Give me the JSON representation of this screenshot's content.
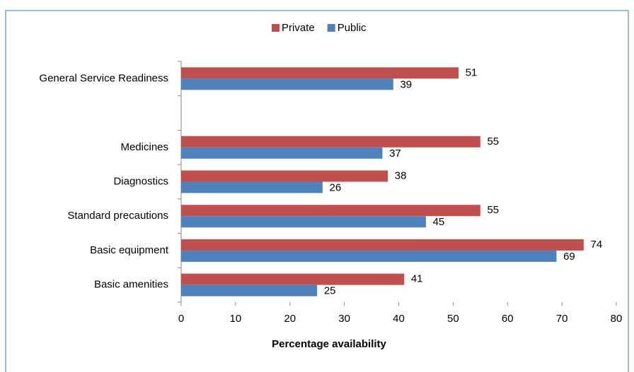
{
  "chart_data": {
    "type": "hbar",
    "categories": [
      "General Service Readiness",
      null,
      "Medicines",
      "Diagnostics",
      "Standard precautions",
      "Basic equipment",
      "Basic amenities"
    ],
    "series": [
      {
        "name": "Private",
        "color": "#c0504d",
        "values": [
          51,
          null,
          55,
          38,
          55,
          74,
          41
        ]
      },
      {
        "name": "Public",
        "color": "#4f81bd",
        "values": [
          39,
          null,
          37,
          26,
          45,
          69,
          25
        ]
      }
    ],
    "xlabel": "Percentage availability",
    "xlim": [
      0,
      80
    ],
    "xticks": [
      0,
      10,
      20,
      30,
      40,
      50,
      60,
      70,
      80
    ],
    "grid": false,
    "legend": "top"
  }
}
